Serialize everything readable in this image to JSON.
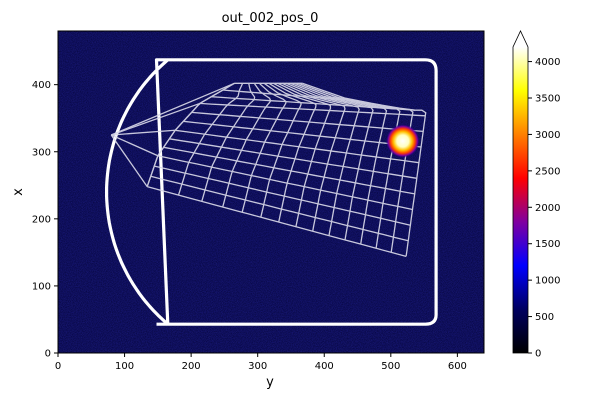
{
  "chart_data": {
    "type": "heatmap",
    "title": "out_002_pos_0",
    "xlabel": "y",
    "ylabel": "x",
    "xlim": [
      0,
      640
    ],
    "ylim": [
      0,
      480
    ],
    "xticks": [
      0,
      100,
      200,
      300,
      400,
      500,
      600
    ],
    "yticks": [
      0,
      100,
      200,
      300,
      400
    ],
    "background": "dark navy noise",
    "colormap": [
      "#000000",
      "#000060",
      "#0000ff",
      "#8000a0",
      "#ff0000",
      "#ff8000",
      "#ffff00",
      "#ffffff"
    ],
    "colorbar": {
      "range": [
        0,
        4200
      ],
      "ticks": [
        0,
        500,
        1000,
        1500,
        2000,
        2500,
        3000,
        3500,
        4000
      ],
      "extend": "max"
    },
    "hotspot": {
      "y": 518,
      "x": 316,
      "peak": 4200,
      "sigma": 9
    },
    "boundary": {
      "color": "#ffffff",
      "corner_points": [
        [
          148,
          43
        ],
        [
          552,
          43
        ],
        [
          568,
          57
        ],
        [
          568,
          421
        ],
        [
          552,
          437
        ],
        [
          148,
          437
        ]
      ],
      "arc": {
        "center_y": 330,
        "center_x": 240,
        "radius": 257
      }
    },
    "grid_overlay": {
      "color": "#d8d8e8",
      "apex": [
        80,
        325
      ],
      "near_edge": [
        [
          265,
          402
        ],
        [
          213,
          372
        ],
        [
          176,
          332
        ],
        [
          150,
          294
        ],
        [
          134,
          248
        ]
      ],
      "far_edge_vertices": [
        [
          553,
          362
        ],
        [
          530,
          362
        ],
        [
          437,
          378
        ],
        [
          367,
          402
        ]
      ],
      "far_edge_end": [
        523,
        144
      ],
      "radial_lines": 12,
      "cross_lines": 14
    }
  }
}
